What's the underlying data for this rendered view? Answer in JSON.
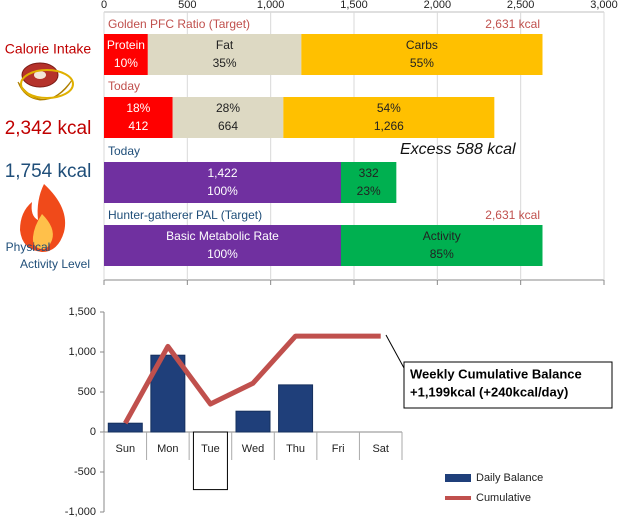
{
  "left_panel": {
    "intake_label": "Calorie Intake",
    "intake_total": "2,342 kcal",
    "activity_total": "1,754 kcal",
    "activity_label": [
      "Physical",
      "Activity Level"
    ]
  },
  "chart_data": [
    {
      "type": "stacked_bar_h",
      "xlim": [
        0,
        3000
      ],
      "xticks": [
        0,
        500,
        {
          "value": 1000,
          "label": "1,000"
        },
        {
          "value": 1500,
          "label": "1,500"
        },
        {
          "value": 2000,
          "label": "2,000"
        },
        {
          "value": 2500,
          "label": "2,500"
        },
        {
          "value": 3000,
          "label": "3,000"
        }
      ],
      "grid": true,
      "annotation": "Excess 588 kcal",
      "rows": [
        {
          "label": "Golden PFC Ratio (Target)",
          "color": "#c0504d",
          "total_label": "2,631 kcal",
          "segments": [
            {
              "name": "Protein",
              "value": 263,
              "percent_label": "10%",
              "color": "#ff0000"
            },
            {
              "name": "Fat",
              "value": 921,
              "percent_label": "35%",
              "color": "#ddd9c3"
            },
            {
              "name": "Carbs",
              "value": 1447,
              "percent_label": "55%",
              "color": "#ffc000"
            }
          ]
        },
        {
          "label": "Today",
          "color": "#c0504d",
          "segments": [
            {
              "value": 412,
              "value_label": "412",
              "percent_label": "18%",
              "color": "#ff0000"
            },
            {
              "value": 664,
              "value_label": "664",
              "percent_label": "28%",
              "color": "#ddd9c3"
            },
            {
              "value": 1266,
              "value_label": "1,266",
              "percent_label": "54%",
              "color": "#ffc000"
            }
          ]
        },
        {
          "label": "Today",
          "color": "#1f4e79",
          "segments": [
            {
              "value": 1422,
              "value_label": "1,422",
              "percent_label": "100%",
              "color": "#7030a0"
            },
            {
              "value": 332,
              "value_label": "332",
              "percent_label": "23%",
              "color": "#00b050"
            }
          ]
        },
        {
          "label": "Hunter-gatherer  PAL (Target)",
          "color": "#1f4e79",
          "total_label": "2,631 kcal",
          "segments": [
            {
              "name": "Basic Metabolic Rate",
              "value": 1422,
              "percent_label": "100%",
              "color": "#7030a0"
            },
            {
              "name": "Activity",
              "value": 1209,
              "percent_label": "85%",
              "color": "#00b050"
            }
          ]
        }
      ]
    },
    {
      "type": "bar_line",
      "categories": [
        "Sun",
        "Mon",
        "Tue",
        "Wed",
        "Thu",
        "Fri",
        "Sat"
      ],
      "ylim": [
        -1000,
        1500
      ],
      "yticks": [
        {
          "value": -1000,
          "label": "-1,000"
        },
        -500,
        0,
        500,
        {
          "value": 1000,
          "label": "1,000"
        },
        {
          "value": 1500,
          "label": "1,500"
        }
      ],
      "series": [
        {
          "name": "Daily Balance",
          "kind": "bar",
          "color": "#1f3f7a",
          "colors": [
            "#1f3f7a",
            "#1f3f7a",
            "#ffffff",
            "#1f3f7a",
            "#1f3f7a",
            "#1f3f7a",
            "#1f3f7a"
          ],
          "values": [
            110,
            960,
            -720,
            260,
            589,
            null,
            null
          ]
        },
        {
          "name": "Cumulative",
          "kind": "line",
          "color": "#c0504d",
          "values": [
            110,
            1070,
            350,
            610,
            1199,
            1199,
            1199
          ]
        }
      ],
      "annotation": [
        "Weekly Cumulative Balance",
        "+1,199kcal (+240kcal/day)"
      ]
    }
  ]
}
